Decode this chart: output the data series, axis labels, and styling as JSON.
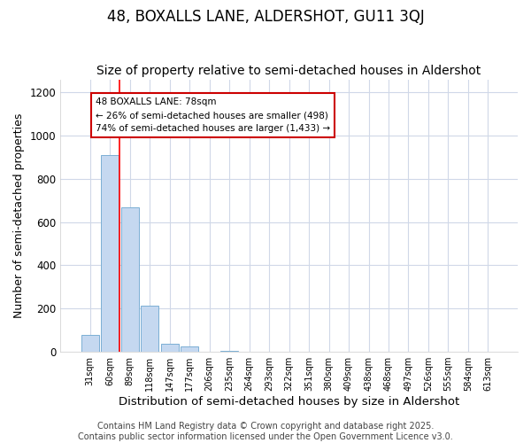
{
  "title1": "48, BOXALLS LANE, ALDERSHOT, GU11 3QJ",
  "title2": "Size of property relative to semi-detached houses in Aldershot",
  "xlabel": "Distribution of semi-detached houses by size in Aldershot",
  "ylabel": "Number of semi-detached properties",
  "bins": [
    "31sqm",
    "60sqm",
    "89sqm",
    "118sqm",
    "147sqm",
    "177sqm",
    "206sqm",
    "235sqm",
    "264sqm",
    "293sqm",
    "322sqm",
    "351sqm",
    "380sqm",
    "409sqm",
    "438sqm",
    "468sqm",
    "497sqm",
    "526sqm",
    "555sqm",
    "584sqm",
    "613sqm"
  ],
  "values": [
    80,
    910,
    670,
    215,
    37,
    25,
    0,
    5,
    0,
    0,
    0,
    0,
    0,
    0,
    0,
    0,
    0,
    0,
    0,
    0,
    0
  ],
  "bar_color": "#c5d8f0",
  "bar_edge_color": "#7bafd4",
  "red_line_x": 1.5,
  "annotation_text": "48 BOXALLS LANE: 78sqm\n← 26% of semi-detached houses are smaller (498)\n74% of semi-detached houses are larger (1,433) →",
  "annotation_box_color": "#ffffff",
  "annotation_box_edge": "#cc0000",
  "footer": "Contains HM Land Registry data © Crown copyright and database right 2025.\nContains public sector information licensed under the Open Government Licence v3.0.",
  "ylim": [
    0,
    1260
  ],
  "yticks": [
    0,
    200,
    400,
    600,
    800,
    1000,
    1200
  ],
  "title1_fontsize": 12,
  "title2_fontsize": 10,
  "xlabel_fontsize": 9.5,
  "ylabel_fontsize": 9,
  "footer_fontsize": 7,
  "background_color": "#ffffff",
  "grid_color": "#d0d8e8"
}
